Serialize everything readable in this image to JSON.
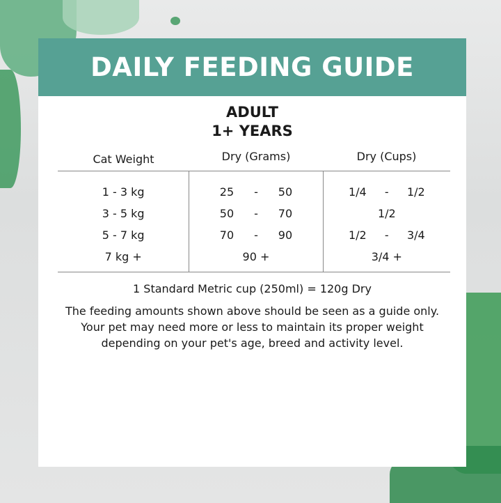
{
  "title": "DAILY FEEDING GUIDE",
  "subtitle": [
    "ADULT",
    "1+ YEARS"
  ],
  "colors": {
    "header": "#56a194",
    "splash": "#3f9a5f"
  },
  "table": {
    "headers": [
      "Cat Weight",
      "Dry (Grams)",
      "Dry (Cups)"
    ],
    "rows": [
      {
        "weight": "1 - 3 kg",
        "grams": [
          "25",
          "-",
          "50"
        ],
        "cups": [
          "1/4",
          "-",
          "1/2"
        ]
      },
      {
        "weight": "3 - 5 kg",
        "grams": [
          "50",
          "-",
          "70"
        ],
        "cups": [
          "1/2"
        ]
      },
      {
        "weight": "5 - 7 kg",
        "grams": [
          "70",
          "-",
          "90"
        ],
        "cups": [
          "1/2",
          "-",
          "3/4"
        ]
      },
      {
        "weight": "7 kg +",
        "grams": [
          "90 +"
        ],
        "cups": [
          "3/4 +"
        ]
      }
    ]
  },
  "conversion": "1 Standard Metric cup (250ml) = 120g Dry",
  "disclaimer": "The feeding amounts shown above should be seen as a guide only. Your pet may need more or less to maintain its proper weight depending on your pet's age, breed and activity level."
}
